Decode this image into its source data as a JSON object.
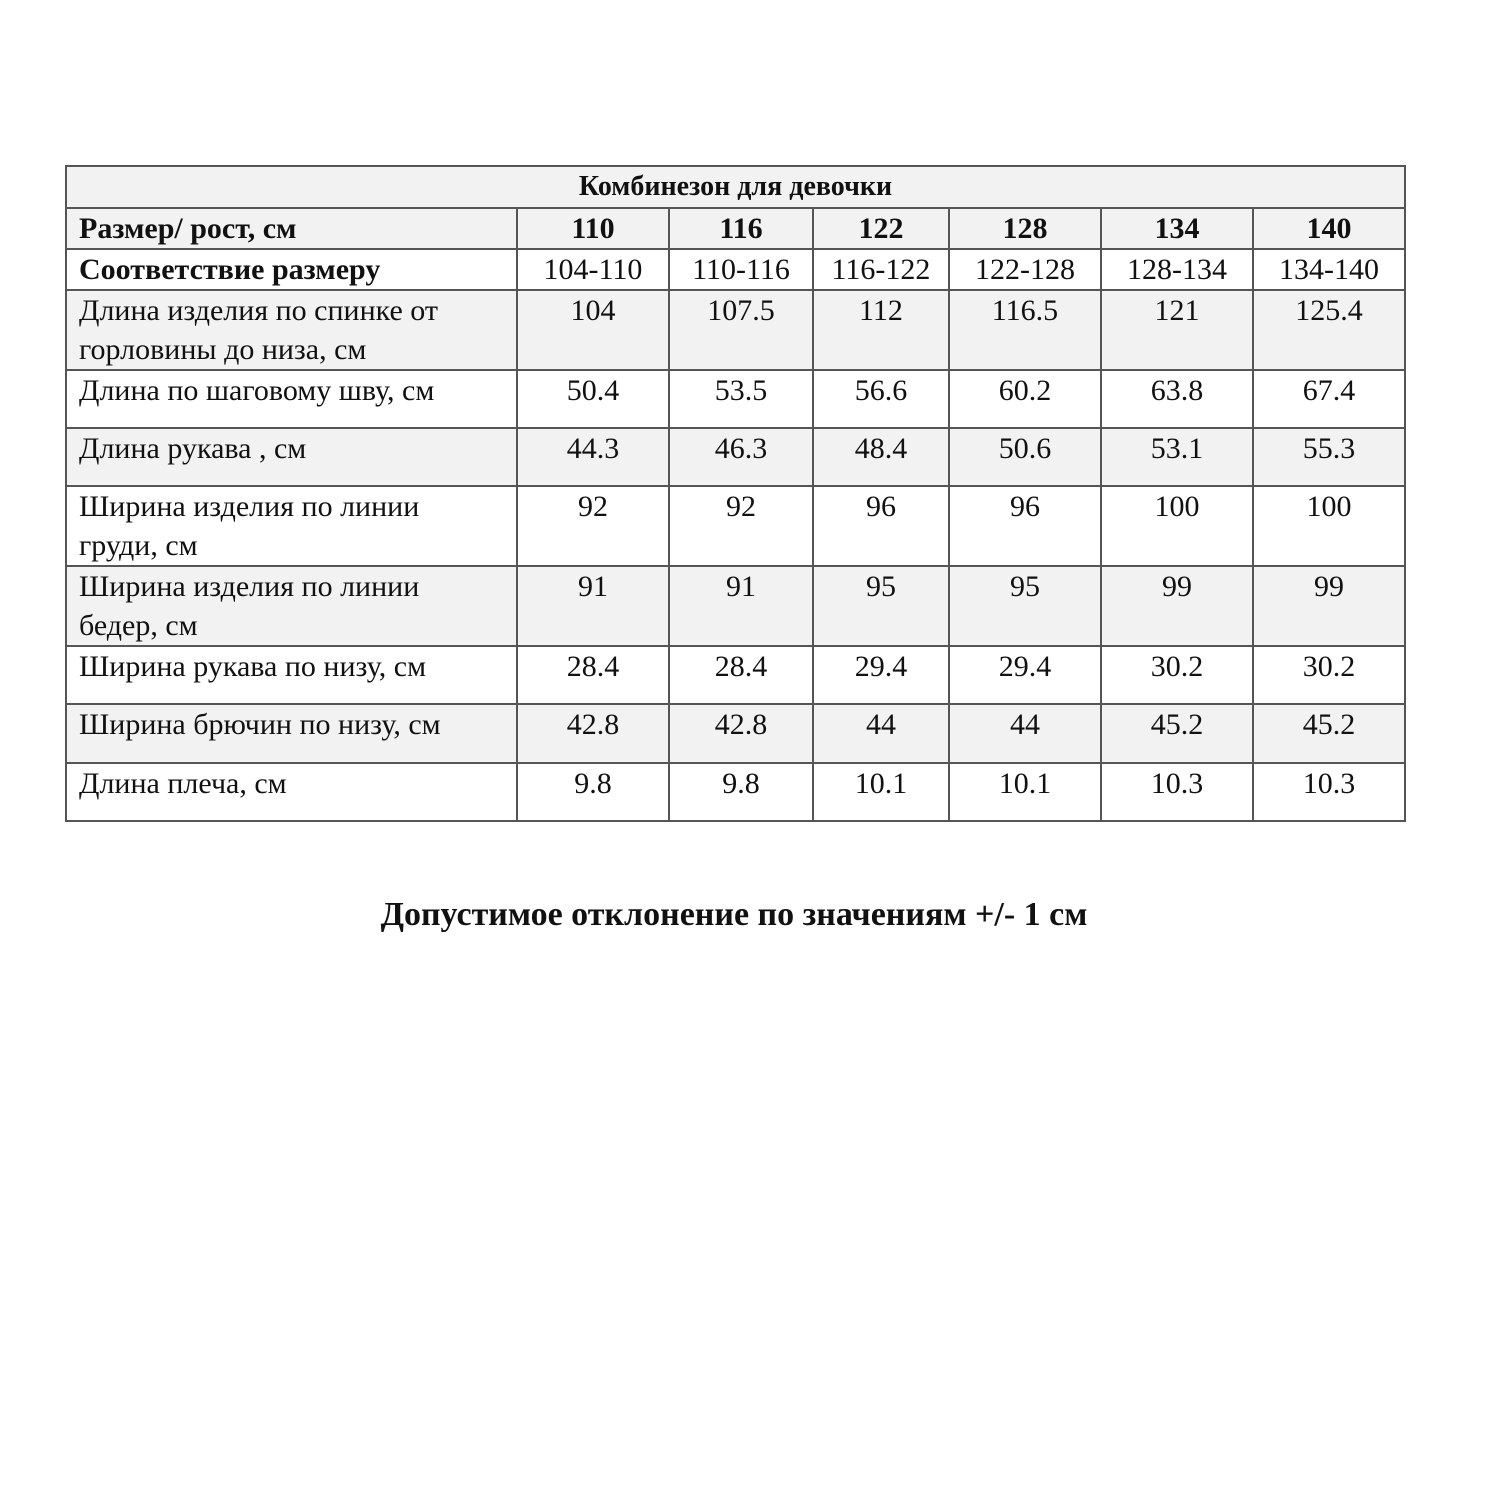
{
  "table": {
    "title": "Комбинезон для девочки",
    "header_label": "Размер/ рост, см",
    "sizes": [
      "110",
      "116",
      "122",
      "128",
      "134",
      "140"
    ],
    "correspondence_label": "Соответствие размеру",
    "correspondence": [
      "104-110",
      "110-116",
      "116-122",
      "122-128",
      "128-134",
      "134-140"
    ],
    "rows": [
      {
        "label": "Длина изделия по спинке от горловины до низа, см",
        "values": [
          "104",
          "107.5",
          "112",
          "116.5",
          "121",
          "125.4"
        ]
      },
      {
        "label": "Длина по шаговому шву, см",
        "values": [
          "50.4",
          "53.5",
          "56.6",
          "60.2",
          "63.8",
          "67.4"
        ]
      },
      {
        "label": "Длина рукава , см",
        "values": [
          "44.3",
          "46.3",
          "48.4",
          "50.6",
          "53.1",
          "55.3"
        ]
      },
      {
        "label": "Ширина изделия по линии груди, см",
        "values": [
          "92",
          "92",
          "96",
          "96",
          "100",
          "100"
        ]
      },
      {
        "label": "Ширина изделия по линии бедер, см",
        "values": [
          "91",
          "91",
          "95",
          "95",
          "99",
          "99"
        ]
      },
      {
        "label": "Ширина рукава по низу, см",
        "values": [
          "28.4",
          "28.4",
          "29.4",
          "29.4",
          "30.2",
          "30.2"
        ]
      },
      {
        "label": "Ширина брючин по низу, см",
        "values": [
          "42.8",
          "42.8",
          "44",
          "44",
          "45.2",
          "45.2"
        ]
      },
      {
        "label": "Длина плеча, см",
        "values": [
          "9.8",
          "9.8",
          "10.1",
          "10.1",
          "10.3",
          "10.3"
        ]
      }
    ]
  },
  "note": "Допустимое отклонение по значениям +/- 1 см"
}
